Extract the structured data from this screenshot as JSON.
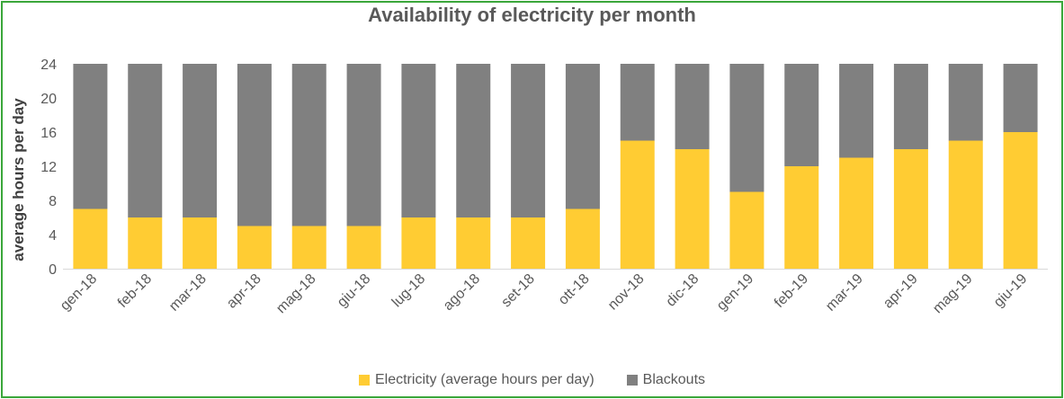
{
  "chart_data": {
    "type": "bar",
    "stacked": true,
    "title": "Availability of electricity per month",
    "xlabel": "",
    "ylabel": "average hours per day",
    "ylim": [
      0,
      24
    ],
    "yticks": [
      0,
      4,
      8,
      12,
      16,
      20,
      24
    ],
    "grid": false,
    "legend_position": "bottom",
    "categories": [
      "gen-18",
      "feb-18",
      "mar-18",
      "apr-18",
      "mag-18",
      "giu-18",
      "lug-18",
      "ago-18",
      "set-18",
      "ott-18",
      "nov-18",
      "dic-18",
      "gen-19",
      "feb-19",
      "mar-19",
      "apr-19",
      "mag-19",
      "giu-19"
    ],
    "series": [
      {
        "name": "Electricity (average hours per day)",
        "color": "#ffcc33",
        "values": [
          7,
          6,
          6,
          5,
          5,
          5,
          6,
          6,
          6,
          7,
          15,
          14,
          9,
          12,
          13,
          14,
          15,
          16
        ]
      },
      {
        "name": "Blackouts",
        "color": "#808080",
        "values": [
          17,
          18,
          18,
          19,
          19,
          19,
          18,
          18,
          18,
          17,
          9,
          10,
          15,
          12,
          11,
          10,
          9,
          8
        ]
      }
    ]
  }
}
